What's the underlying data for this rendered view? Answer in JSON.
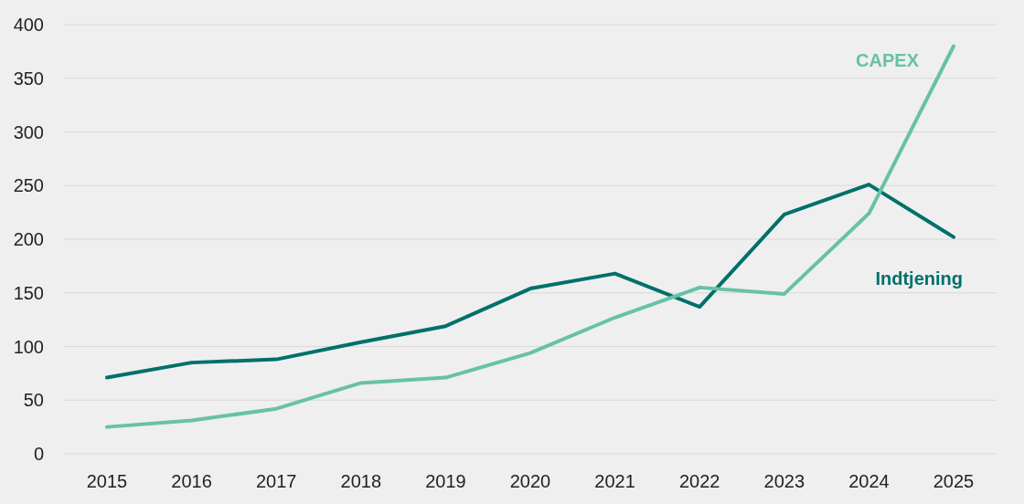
{
  "chart_data": {
    "type": "line",
    "categories": [
      "2015",
      "2016",
      "2017",
      "2018",
      "2019",
      "2020",
      "2021",
      "2022",
      "2023",
      "2024",
      "2025"
    ],
    "series": [
      {
        "name": "Indtjening",
        "color": "#00706a",
        "values": [
          71,
          85,
          88,
          104,
          119,
          154,
          168,
          137,
          223,
          251,
          202
        ]
      },
      {
        "name": "CAPEX",
        "color": "#66c2a5",
        "values": [
          25,
          31,
          42,
          66,
          71,
          94,
          127,
          155,
          149,
          224,
          380
        ]
      }
    ],
    "ylim": [
      0,
      400
    ],
    "yticks": [
      0,
      50,
      100,
      150,
      200,
      250,
      300,
      350,
      400
    ],
    "grid": "y",
    "marker": "none",
    "line_style": "solid"
  }
}
